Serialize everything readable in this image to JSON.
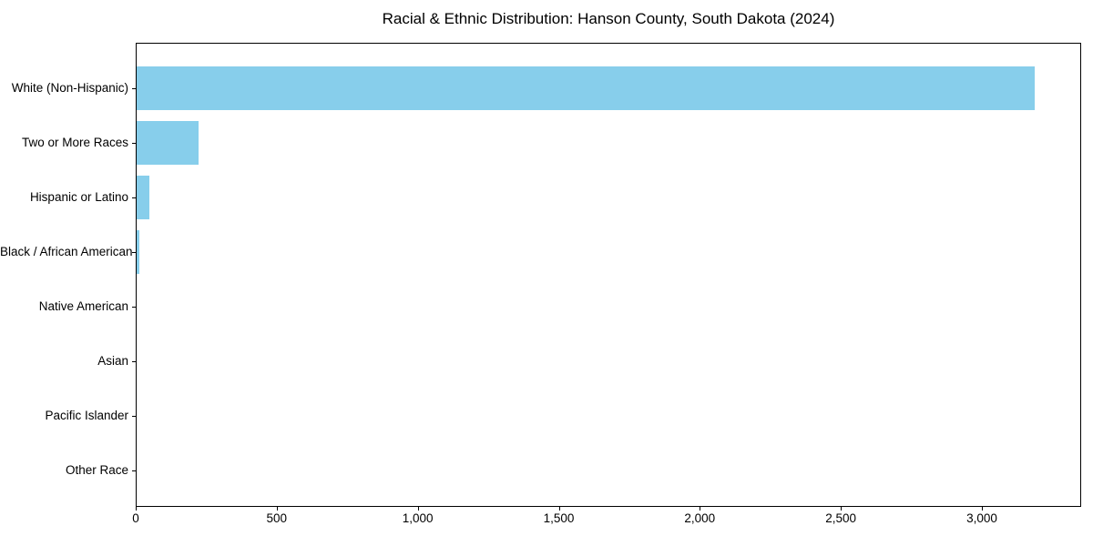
{
  "chart_data": {
    "type": "bar",
    "orientation": "horizontal",
    "title": "Racial & Ethnic Distribution: Hanson County, South Dakota (2024)",
    "categories": [
      "White (Non-Hispanic)",
      "Two or More Races",
      "Hispanic or Latino",
      "Black / African American",
      "Native American",
      "Asian",
      "Pacific Islander",
      "Other Race"
    ],
    "values": [
      3185,
      220,
      44,
      11,
      0,
      0,
      0,
      0
    ],
    "bar_color": "#87CEEB",
    "xlabel": "",
    "ylabel": "",
    "xlim": [
      0,
      3352
    ],
    "x_ticks": [
      0,
      500,
      1000,
      1500,
      2000,
      2500,
      3000
    ],
    "x_tick_labels": [
      "0",
      "500",
      "1,000",
      "1,500",
      "2,000",
      "2,500",
      "3,000"
    ],
    "grid": false,
    "legend_position": "none",
    "text_color": "#000000",
    "axis_color": "#000000",
    "background_color": "#ffffff"
  }
}
